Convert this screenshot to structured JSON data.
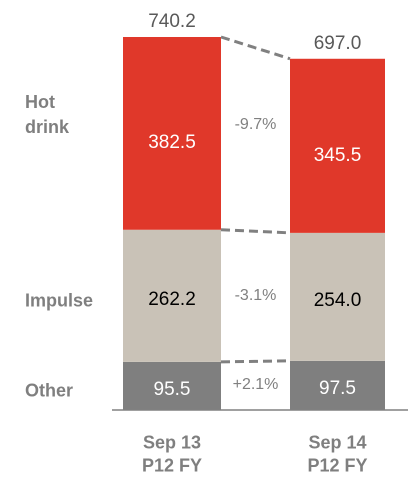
{
  "chart_data": {
    "type": "stacked_bar",
    "categories": [
      "Sep 13\nP12 FY",
      "Sep 14\nP12 FY"
    ],
    "series": [
      {
        "name": "Other",
        "color": "#7f7f7f",
        "text_color": "#ffffff",
        "values": [
          95.5,
          97.5
        ],
        "value_labels": [
          "95.5",
          "97.5"
        ],
        "change": "+2.1%"
      },
      {
        "name": "Impulse",
        "color": "#c9c2b7",
        "text_color": "#000000",
        "values": [
          262.2,
          254.0
        ],
        "value_labels": [
          "262.2",
          "254.0"
        ],
        "change": "-3.1%"
      },
      {
        "name": "Hot\ndrink",
        "color": "#e0382a",
        "text_color": "#ffffff",
        "values": [
          382.5,
          345.5
        ],
        "value_labels": [
          "382.5",
          "345.5"
        ],
        "change": "-9.7%"
      }
    ],
    "totals": {
      "values": [
        740.2,
        697.0
      ],
      "value_labels": [
        "740.2",
        "697.0"
      ]
    }
  }
}
